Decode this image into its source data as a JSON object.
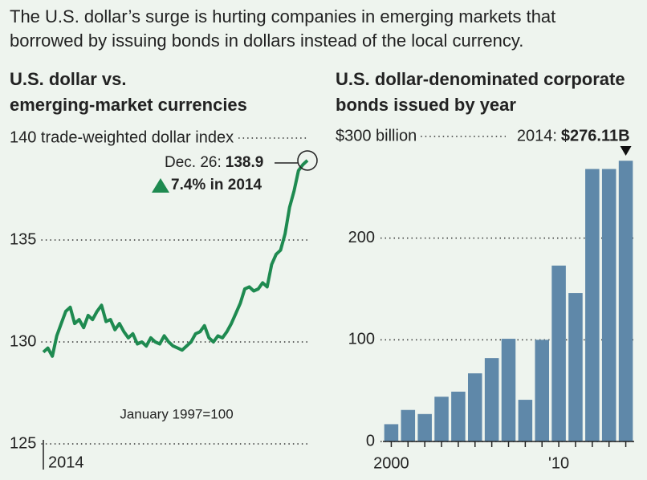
{
  "intro": [
    "The U.S. dollar’s surge is hurting companies in emerging markets that",
    "borrowed by issuing bonds in dollars instead of the local currency."
  ],
  "chart_data": [
    {
      "type": "line",
      "title_lines": [
        "U.S. dollar vs.",
        "emerging-market currencies"
      ],
      "note": "January 1997=100",
      "x_tick_label": "2014",
      "color": "#1e8a50",
      "ylim": [
        125,
        140
      ],
      "yticks": [
        125,
        130,
        135,
        {
          "value": 140,
          "label": "140 trade-weighted dollar index"
        }
      ],
      "values": [
        129.5,
        129.7,
        129.3,
        130.3,
        130.9,
        131.5,
        131.7,
        130.9,
        131.1,
        130.7,
        131.3,
        131.1,
        131.5,
        131.8,
        131.0,
        131.1,
        130.6,
        130.9,
        130.5,
        130.2,
        130.4,
        129.9,
        130.0,
        129.8,
        130.2,
        130.0,
        129.9,
        130.3,
        130.0,
        129.8,
        129.7,
        129.6,
        129.8,
        130.0,
        130.4,
        130.5,
        130.8,
        130.2,
        130.0,
        130.3,
        130.2,
        130.5,
        130.9,
        131.4,
        131.9,
        132.6,
        132.7,
        132.5,
        132.6,
        132.9,
        132.7,
        133.8,
        134.3,
        134.5,
        135.3,
        136.6,
        137.4,
        138.4,
        138.7,
        138.9
      ],
      "annotation": {
        "date": "Dec. 26:",
        "change": "7.4% in 2014"
      }
    },
    {
      "type": "bar",
      "title_lines": [
        "U.S. dollar-denominated corporate",
        "bonds issued by year"
      ],
      "color": "#5f88a9",
      "ylim": [
        0,
        300
      ],
      "yticks": [
        0,
        100,
        200,
        {
          "value": 300,
          "label": "$300 billion"
        }
      ],
      "categories": [
        "2000",
        null,
        null,
        null,
        null,
        null,
        null,
        null,
        null,
        null,
        "'10",
        null,
        null,
        null,
        null
      ],
      "values": [
        17,
        31,
        27,
        44,
        49,
        67,
        82,
        101,
        41,
        100,
        173,
        146,
        268,
        268,
        276.11
      ],
      "value_labels": [
        null,
        null,
        null,
        null,
        null,
        null,
        null,
        null,
        null,
        null,
        null,
        null,
        null,
        null,
        "$276.11B"
      ],
      "annotation": {
        "year": "2014:"
      }
    }
  ]
}
